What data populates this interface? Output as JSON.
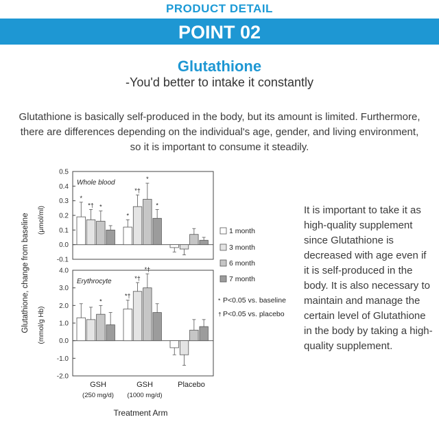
{
  "header": {
    "band_label": "PRODUCT DETAIL",
    "point_label": "POINT 02"
  },
  "main": {
    "title": "Glutathione",
    "subtitle": "-You'd better to intake it constantly",
    "intro": "Glutathione is basically self-produced in the body, but its amount is limited. Furthermore, there are differences depending on the individual's age, gender, and living environment, so it is important to consume it steadily.",
    "side_text": "It is important to take it as high-quality supplement since Glutathione is decreased with age even if it is self-produced in the body. It is also necessary to maintain and manage the certain level of Glutathione in the body by taking a high-quality supplement."
  },
  "colors": {
    "accent": "#1e97d3",
    "text": "#3a3a3a"
  },
  "chart_data": {
    "type": "bar",
    "categories": [
      "GSH",
      "GSH",
      "Placebo"
    ],
    "category_sublabels": [
      "(250 mg/d)",
      "(1000 mg/d)",
      ""
    ],
    "xlabel": "Treatment Arm",
    "ylabel": "Glutathione, change from baseline",
    "series": [
      {
        "name": "1 month",
        "color": "#ffffff"
      },
      {
        "name": "3 month",
        "color": "#e4e4e4"
      },
      {
        "name": "6 month",
        "color": "#c6c6c6"
      },
      {
        "name": "7 month",
        "color": "#9c9c9c"
      }
    ],
    "legend_position": "right",
    "significance_legend": [
      "P<0.05 vs. baseline",
      "P<0.05 vs. placebo"
    ],
    "panels": [
      {
        "label": "Whole blood",
        "unit": "(μmol/ml)",
        "ylim": [
          -0.1,
          0.5
        ],
        "ticks": [
          "0.5",
          "0.4",
          "0.3",
          "0.2",
          "0.1",
          "0.0",
          "-0.1"
        ],
        "values": [
          [
            0.19,
            0.17,
            0.16,
            0.1
          ],
          [
            0.12,
            0.26,
            0.31,
            0.18
          ],
          [
            -0.02,
            -0.03,
            0.07,
            0.03
          ]
        ],
        "errors": [
          [
            0.1,
            0.07,
            0.07,
            0.03
          ],
          [
            0.05,
            0.08,
            0.11,
            0.06
          ],
          [
            0.03,
            0.04,
            0.04,
            0.02
          ]
        ],
        "marks": [
          [
            "*",
            "*†",
            "*",
            ""
          ],
          [
            "*",
            "*†",
            "*",
            "*"
          ],
          [
            "",
            "",
            "",
            ""
          ]
        ]
      },
      {
        "label": "Erythrocyte",
        "unit": "(mmol/g Hb)",
        "ylim": [
          -2.0,
          4.0
        ],
        "ticks": [
          "4.0",
          "3.0",
          "2.0",
          "1.0",
          "0.0",
          "-1.0",
          "-2.0"
        ],
        "values": [
          [
            1.3,
            1.2,
            1.5,
            0.9
          ],
          [
            1.8,
            2.8,
            3.0,
            1.6
          ],
          [
            -0.4,
            -0.8,
            0.6,
            0.8
          ]
        ],
        "errors": [
          [
            0.8,
            0.7,
            0.5,
            0.7
          ],
          [
            0.5,
            0.5,
            0.8,
            0.5
          ],
          [
            0.4,
            0.6,
            0.6,
            0.4
          ]
        ],
        "marks": [
          [
            "",
            "",
            "*",
            ""
          ],
          [
            "*†",
            "*†",
            "*†",
            ""
          ],
          [
            "",
            "",
            "",
            ""
          ]
        ]
      }
    ]
  }
}
